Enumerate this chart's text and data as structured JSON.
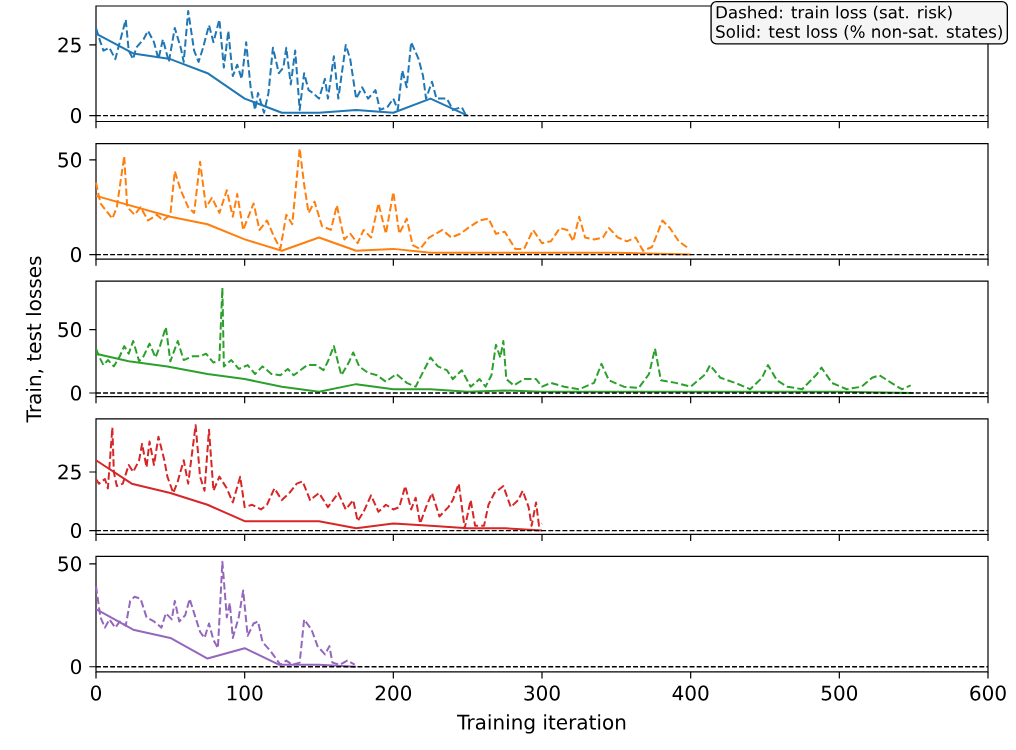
{
  "chart_data": [
    {
      "type": "line",
      "xlim": [
        0,
        600
      ],
      "xticks": [
        0,
        100,
        200,
        300,
        400,
        500,
        600
      ],
      "ylim": [
        -2.1,
        38.8
      ],
      "yticks": [
        0,
        25
      ],
      "tick_labels": "y",
      "annotations": [
        "Dashed: train loss (sat. risk)",
        "Solid: test loss (% non-sat. states)"
      ],
      "ref_lines": [
        {
          "axis": "y",
          "value": 0,
          "color": "#000000",
          "line_style": "dashed"
        }
      ],
      "series": [
        {
          "color": "#1f77b4",
          "line_style": "dashed",
          "x": [
            0,
            3,
            5,
            9,
            13,
            16,
            20,
            22,
            25,
            27,
            32,
            35,
            39,
            42,
            45,
            49,
            53,
            57,
            59,
            62,
            66,
            69,
            72,
            76,
            79,
            83,
            86,
            89,
            92,
            95,
            98,
            101,
            104,
            107,
            109,
            113,
            116,
            119,
            123,
            126,
            128,
            131,
            134,
            137,
            140,
            143,
            146,
            150,
            154,
            156,
            160,
            163,
            168,
            171,
            175,
            179,
            183,
            188,
            191,
            196,
            200,
            203,
            206,
            209,
            212,
            217,
            220,
            222,
            226,
            229,
            236,
            240,
            246,
            249
          ],
          "values": [
            31,
            26,
            23,
            24,
            20,
            26,
            34,
            23,
            20,
            24,
            27,
            30,
            26,
            20,
            27,
            19,
            31,
            24,
            19,
            37,
            23,
            19,
            24,
            32,
            26,
            34,
            17,
            30,
            14,
            18,
            13,
            26,
            10,
            2,
            8,
            1,
            8,
            24,
            15,
            17,
            24,
            11,
            23,
            2,
            15,
            9,
            8,
            6,
            13,
            6,
            21,
            6,
            25,
            20,
            6,
            10,
            6,
            9,
            2,
            3,
            6,
            2,
            16,
            10,
            26,
            20,
            14,
            6,
            12,
            6,
            6,
            2,
            3,
            0
          ]
        },
        {
          "color": "#1f77b4",
          "line_style": "solid",
          "x": [
            0,
            25,
            50,
            75,
            100,
            125,
            150,
            175,
            200,
            225,
            250
          ],
          "values": [
            29,
            22,
            20,
            15,
            6,
            1,
            1,
            2,
            1,
            6,
            0
          ]
        }
      ]
    },
    {
      "type": "line",
      "xlim": [
        0,
        600
      ],
      "xticks": [
        0,
        100,
        200,
        300,
        400,
        500,
        600
      ],
      "ylim": [
        -2.4,
        58.6
      ],
      "yticks": [
        0,
        50
      ],
      "tick_labels": "y",
      "ref_lines": [
        {
          "axis": "y",
          "value": 0,
          "color": "#000000",
          "line_style": "dashed"
        }
      ],
      "series": [
        {
          "color": "#ff7f0e",
          "line_style": "dashed",
          "x": [
            0,
            3,
            8,
            11,
            14,
            19,
            21,
            26,
            30,
            35,
            41,
            45,
            50,
            53,
            57,
            62,
            66,
            70,
            74,
            78,
            83,
            88,
            92,
            95,
            99,
            106,
            110,
            115,
            120,
            124,
            128,
            132,
            137,
            140,
            143,
            147,
            152,
            158,
            162,
            167,
            171,
            176,
            180,
            185,
            190,
            195,
            200,
            204,
            209,
            213,
            218,
            224,
            233,
            239,
            245,
            252,
            258,
            264,
            269,
            275,
            282,
            288,
            294,
            300,
            306,
            312,
            317,
            321,
            325,
            329,
            335,
            341,
            345,
            351,
            357,
            363,
            368,
            374,
            381,
            386,
            392,
            399
          ],
          "values": [
            38,
            27,
            22,
            19,
            25,
            52,
            25,
            21,
            25,
            18,
            21,
            18,
            21,
            44,
            34,
            25,
            22,
            49,
            25,
            30,
            22,
            34,
            20,
            32,
            13,
            27,
            13,
            18,
            9,
            3,
            21,
            16,
            56,
            37,
            22,
            28,
            15,
            13,
            26,
            8,
            11,
            6,
            13,
            9,
            27,
            11,
            33,
            11,
            19,
            5,
            3,
            9,
            13,
            9,
            11,
            15,
            18,
            19,
            11,
            12,
            3,
            3,
            13,
            6,
            7,
            14,
            13,
            7,
            20,
            9,
            8,
            9,
            14,
            9,
            7,
            9,
            2,
            4,
            18,
            14,
            7,
            3
          ]
        },
        {
          "color": "#ff7f0e",
          "line_style": "solid",
          "x": [
            0,
            50,
            75,
            100,
            125,
            150,
            175,
            200,
            225,
            250,
            300,
            350,
            400
          ],
          "values": [
            31,
            20,
            16,
            8,
            2,
            9,
            2,
            3,
            1,
            1,
            1,
            1,
            0
          ]
        }
      ]
    },
    {
      "type": "line",
      "xlim": [
        0,
        600
      ],
      "xticks": [
        0,
        100,
        200,
        300,
        400,
        500,
        600
      ],
      "ylim": [
        -2.9,
        88.2
      ],
      "yticks": [
        0,
        50
      ],
      "tick_labels": "y",
      "ylabel": "Train, test losses",
      "ref_lines": [
        {
          "axis": "y",
          "value": 0,
          "color": "#000000",
          "line_style": "dashed"
        }
      ],
      "series": [
        {
          "color": "#2ca02c",
          "line_style": "dashed",
          "x": [
            0,
            2,
            5,
            8,
            12,
            16,
            19,
            22,
            25,
            29,
            32,
            36,
            40,
            43,
            47,
            50,
            55,
            59,
            65,
            70,
            74,
            79,
            83,
            85,
            86,
            91,
            96,
            102,
            107,
            112,
            118,
            124,
            129,
            133,
            142,
            148,
            153,
            156,
            160,
            165,
            170,
            173,
            177,
            183,
            189,
            195,
            202,
            209,
            215,
            221,
            225,
            230,
            236,
            240,
            246,
            252,
            258,
            262,
            266,
            269,
            272,
            274,
            276,
            281,
            288,
            296,
            300,
            306,
            315,
            325,
            335,
            340,
            345,
            355,
            365,
            372,
            376,
            380,
            390,
            400,
            410,
            413,
            420,
            430,
            440,
            448,
            452,
            458,
            465,
            475,
            485,
            488,
            495,
            505,
            515,
            522,
            527,
            535,
            542,
            548
          ],
          "values": [
            35,
            29,
            22,
            26,
            21,
            29,
            37,
            31,
            41,
            25,
            29,
            39,
            28,
            37,
            52,
            25,
            41,
            26,
            29,
            29,
            31,
            24,
            26,
            83,
            21,
            26,
            19,
            22,
            15,
            21,
            15,
            14,
            19,
            14,
            22,
            22,
            18,
            25,
            37,
            14,
            24,
            32,
            21,
            16,
            14,
            9,
            15,
            8,
            5,
            19,
            28,
            21,
            18,
            11,
            18,
            5,
            11,
            5,
            14,
            38,
            28,
            41,
            11,
            6,
            11,
            11,
            5,
            8,
            5,
            3,
            8,
            23,
            10,
            5,
            4,
            15,
            35,
            10,
            8,
            5,
            15,
            22,
            12,
            8,
            3,
            12,
            22,
            10,
            5,
            3,
            15,
            20,
            8,
            3,
            5,
            12,
            14,
            8,
            3,
            6
          ]
        },
        {
          "color": "#2ca02c",
          "line_style": "solid",
          "x": [
            0,
            22,
            48,
            75,
            100,
            125,
            150,
            175,
            200,
            225,
            250,
            275,
            300,
            350,
            400,
            450,
            500,
            550
          ],
          "values": [
            31,
            25,
            21,
            15,
            11,
            5,
            1,
            7,
            3,
            3,
            1,
            2,
            1,
            1,
            1,
            1,
            1,
            0
          ]
        }
      ]
    },
    {
      "type": "line",
      "xlim": [
        0,
        600
      ],
      "xticks": [
        0,
        100,
        200,
        300,
        400,
        500,
        600
      ],
      "ylim": [
        -1.6,
        47.7
      ],
      "yticks": [
        0,
        25
      ],
      "tick_labels": "y",
      "ref_lines": [
        {
          "axis": "y",
          "value": 0,
          "color": "#000000",
          "line_style": "dashed"
        }
      ],
      "series": [
        {
          "color": "#d62728",
          "line_style": "dashed",
          "x": [
            0,
            2,
            6,
            8,
            11,
            12,
            14,
            18,
            22,
            25,
            29,
            31,
            34,
            36,
            39,
            42,
            46,
            48,
            52,
            55,
            59,
            62,
            67,
            70,
            73,
            76,
            79,
            83,
            88,
            92,
            97,
            100,
            105,
            111,
            115,
            120,
            125,
            130,
            135,
            139,
            144,
            150,
            156,
            163,
            168,
            173,
            176,
            180,
            185,
            190,
            195,
            200,
            204,
            208,
            212,
            215,
            218,
            222,
            226,
            231,
            237,
            240,
            244,
            248,
            252,
            255,
            261,
            264,
            268,
            274,
            279,
            284,
            287,
            291,
            293,
            296,
            298,
            300
          ],
          "values": [
            22,
            20,
            22,
            18,
            44,
            25,
            19,
            20,
            28,
            25,
            30,
            37,
            27,
            38,
            28,
            40,
            30,
            23,
            16,
            21,
            30,
            20,
            45,
            23,
            17,
            43,
            17,
            23,
            18,
            12,
            23,
            10,
            11,
            9,
            11,
            18,
            13,
            16,
            20,
            21,
            13,
            16,
            10,
            16,
            9,
            13,
            4,
            8,
            15,
            8,
            11,
            9,
            10,
            19,
            9,
            14,
            3,
            10,
            16,
            6,
            10,
            13,
            20,
            1,
            13,
            2,
            2,
            11,
            16,
            19,
            10,
            13,
            17,
            10,
            2,
            12,
            2,
            3
          ]
        },
        {
          "color": "#d62728",
          "line_style": "solid",
          "x": [
            0,
            24,
            50,
            75,
            100,
            150,
            175,
            200,
            225,
            250,
            275,
            300
          ],
          "values": [
            30,
            20,
            16,
            11,
            4,
            4,
            1,
            3,
            2,
            1,
            1,
            0
          ]
        }
      ]
    },
    {
      "type": "line",
      "xlim": [
        0,
        600
      ],
      "xticks": [
        0,
        100,
        200,
        300,
        400,
        500,
        600
      ],
      "ylim": [
        -2.5,
        53.6
      ],
      "yticks": [
        0,
        50
      ],
      "xlabel": "Training iteration",
      "ref_lines": [
        {
          "axis": "y",
          "value": 0,
          "color": "#000000",
          "line_style": "dashed"
        }
      ],
      "series": [
        {
          "color": "#9467bd",
          "line_style": "dashed",
          "x": [
            0,
            3,
            6,
            9,
            13,
            16,
            20,
            23,
            26,
            30,
            34,
            39,
            44,
            47,
            51,
            53,
            56,
            60,
            63,
            66,
            70,
            73,
            76,
            79,
            82,
            85,
            88,
            90,
            92,
            96,
            99,
            102,
            106,
            109,
            112,
            117,
            120,
            124,
            128,
            132,
            137,
            140,
            145,
            149,
            154,
            157,
            159,
            164,
            169,
            174
          ],
          "values": [
            39,
            24,
            19,
            23,
            19,
            22,
            20,
            32,
            34,
            33,
            24,
            22,
            19,
            26,
            23,
            32,
            22,
            25,
            33,
            26,
            17,
            14,
            21,
            13,
            9,
            51,
            24,
            31,
            14,
            24,
            37,
            15,
            21,
            22,
            12,
            8,
            5,
            1,
            3,
            1,
            2,
            23,
            18,
            10,
            6,
            10,
            2,
            1,
            3,
            1
          ]
        },
        {
          "color": "#9467bd",
          "line_style": "solid",
          "x": [
            0,
            25,
            50,
            75,
            100,
            123,
            150,
            175
          ],
          "values": [
            28,
            18,
            14,
            4,
            9,
            1,
            1,
            0
          ]
        }
      ]
    }
  ]
}
